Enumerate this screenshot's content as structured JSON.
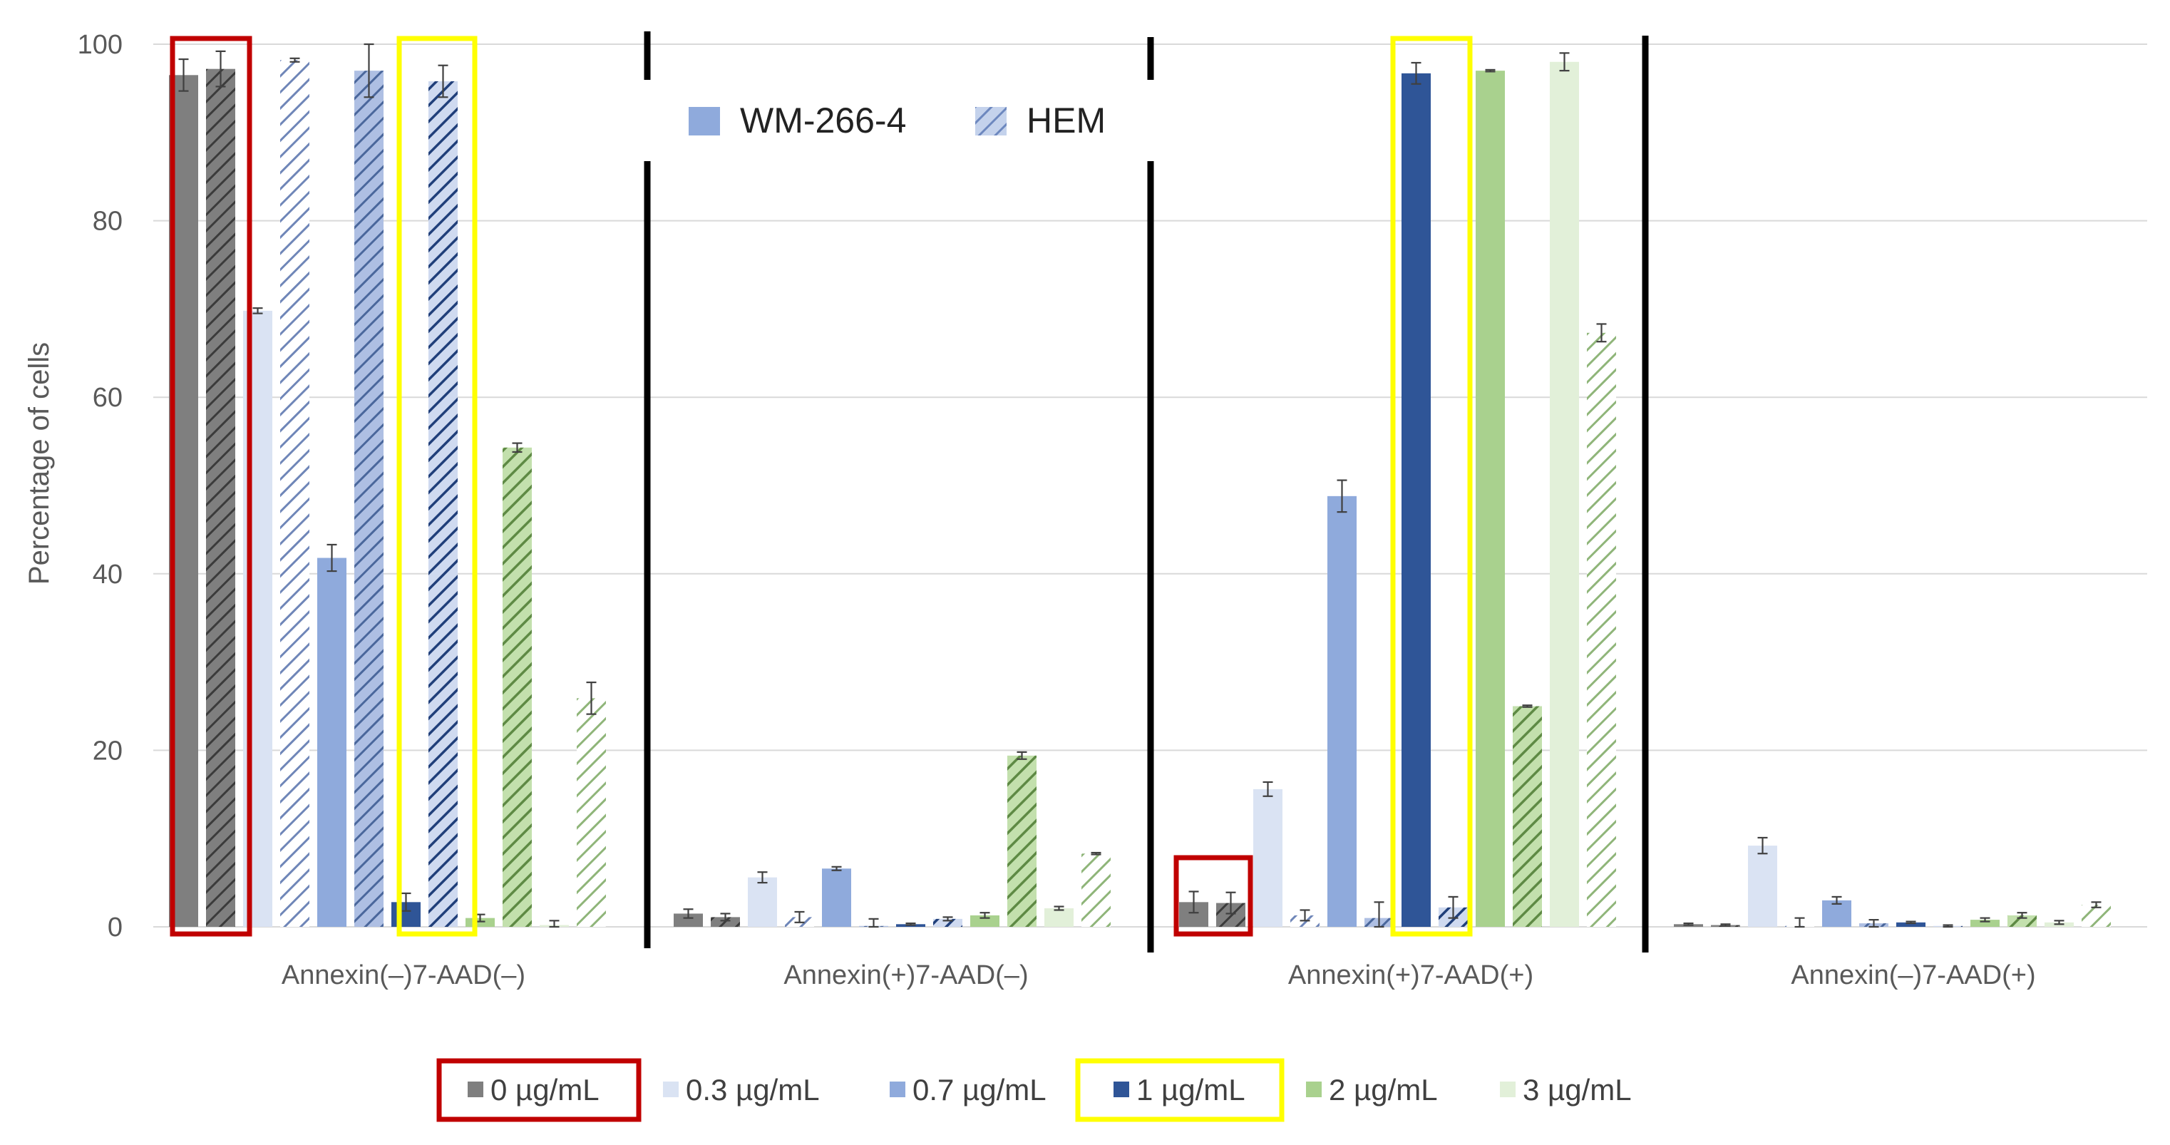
{
  "chart_data": {
    "type": "bar",
    "ylabel": "Percentage of cells",
    "xlabel": "",
    "ylim": [
      0,
      100
    ],
    "yticks": [
      0,
      20,
      40,
      60,
      80,
      100
    ],
    "grid": true,
    "categories": [
      "Annexin(–)7-AAD(–)",
      "Annexin(+)7-AAD(–)",
      "Annexin(+)7-AAD(+)",
      "Annexin(–)7-AAD(+)"
    ],
    "concentration_legend": [
      "0 µg/mL",
      "0.3 µg/mL",
      "0.7 µg/mL",
      "1 µg/mL",
      "2 µg/mL",
      "3 µg/mL"
    ],
    "cell_line_legend": [
      {
        "name": "WM-266-4",
        "style": "solid"
      },
      {
        "name": "HEM",
        "style": "hatched"
      }
    ],
    "colors": {
      "0 µg/mL": "#7f7f7f",
      "0.3 µg/mL": "#dae3f3",
      "0.7 µg/mL": "#8faadc",
      "1 µg/mL": "#2f5597",
      "2 µg/mL": "#a9d18e",
      "3 µg/mL": "#e2f0d9"
    },
    "highlight_colors": {
      "red": "#c00000",
      "yellow": "#ffff00"
    },
    "series": [
      {
        "name": "0 µg/mL",
        "cell_line": "WM-266-4",
        "values": [
          96.5,
          1.5,
          2.8,
          0.3
        ],
        "errors": [
          1.8,
          0.5,
          1.2,
          0.1
        ]
      },
      {
        "name": "0 µg/mL",
        "cell_line": "HEM",
        "values": [
          97.2,
          1.1,
          2.7,
          0.2
        ],
        "errors": [
          2.0,
          0.4,
          1.2,
          0.1
        ]
      },
      {
        "name": "0.3 µg/mL",
        "cell_line": "WM-266-4",
        "values": [
          69.8,
          5.6,
          15.6,
          9.2
        ],
        "errors": [
          0.3,
          0.6,
          0.8,
          0.9
        ]
      },
      {
        "name": "0.3 µg/mL",
        "cell_line": "HEM",
        "values": [
          98.2,
          1.1,
          1.3,
          0.1
        ],
        "errors": [
          0.2,
          0.6,
          0.6,
          0.9
        ]
      },
      {
        "name": "0.7 µg/mL",
        "cell_line": "WM-266-4",
        "values": [
          41.8,
          6.6,
          48.8,
          3.0
        ],
        "errors": [
          1.5,
          0.2,
          1.8,
          0.4
        ]
      },
      {
        "name": "0.7 µg/mL",
        "cell_line": "HEM",
        "values": [
          97.0,
          0.1,
          1.0,
          0.4
        ],
        "errors": [
          3.0,
          0.8,
          1.8,
          0.4
        ]
      },
      {
        "name": "1 µg/mL",
        "cell_line": "WM-266-4",
        "values": [
          2.8,
          0.3,
          96.7,
          0.5
        ],
        "errors": [
          1.0,
          0.1,
          1.2,
          0.1
        ]
      },
      {
        "name": "1 µg/mL",
        "cell_line": "HEM",
        "values": [
          95.8,
          0.9,
          2.2,
          0.1
        ],
        "errors": [
          1.8,
          0.2,
          1.2,
          0.1
        ]
      },
      {
        "name": "2 µg/mL",
        "cell_line": "WM-266-4",
        "values": [
          1.0,
          1.3,
          97.0,
          0.8
        ],
        "errors": [
          0.4,
          0.3,
          0.1,
          0.2
        ]
      },
      {
        "name": "2 µg/mL",
        "cell_line": "HEM",
        "values": [
          54.3,
          19.4,
          25.0,
          1.3
        ],
        "errors": [
          0.5,
          0.4,
          0.1,
          0.3
        ]
      },
      {
        "name": "3 µg/mL",
        "cell_line": "WM-266-4",
        "values": [
          0.2,
          2.1,
          98.0,
          0.5
        ],
        "errors": [
          0.5,
          0.2,
          1.0,
          0.2
        ]
      },
      {
        "name": "3 µg/mL",
        "cell_line": "HEM",
        "values": [
          25.9,
          8.3,
          67.3,
          2.5
        ],
        "errors": [
          1.8,
          0.1,
          1.0,
          0.3
        ]
      }
    ]
  }
}
